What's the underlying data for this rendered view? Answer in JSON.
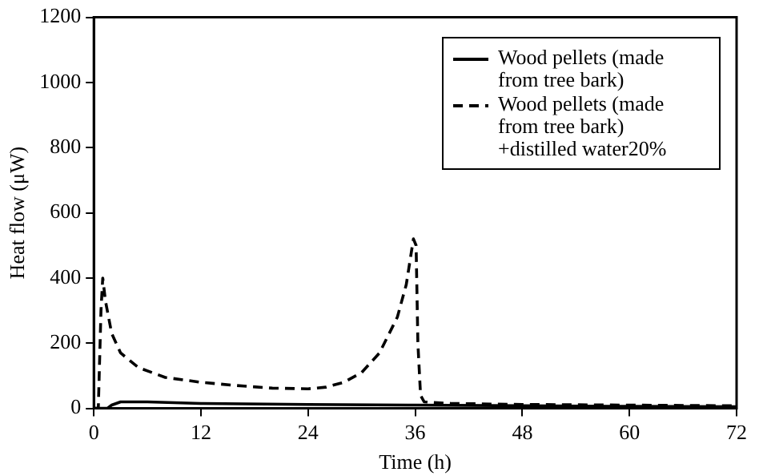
{
  "chart_data": {
    "type": "line",
    "xlabel": "Time (h)",
    "ylabel": "Heat flow (μW)",
    "xlim": [
      0,
      72
    ],
    "xticks": [
      0,
      12,
      24,
      36,
      48,
      60,
      72
    ],
    "ylim": [
      0,
      1200
    ],
    "yticks": [
      0,
      200,
      400,
      600,
      800,
      1000,
      1200
    ],
    "grid": false,
    "legend": "top right",
    "marker": "none",
    "series": [
      {
        "name": "Wood pellets (made from tree bark)",
        "color": "#000000",
        "line_style": "solid",
        "x": [
          0,
          1.5,
          2,
          3,
          6,
          12,
          24,
          36,
          48,
          60,
          72
        ],
        "values": [
          0,
          0,
          10,
          20,
          20,
          15,
          12,
          10,
          8,
          6,
          5
        ]
      },
      {
        "name": "Wood pellets (made from tree bark)\n+distilled water20%",
        "color": "#000000",
        "line_style": "dashed",
        "x": [
          0,
          0.5,
          0.8,
          1,
          1.3,
          2,
          3,
          5,
          8,
          12,
          16,
          20,
          24,
          26,
          28,
          30,
          32,
          34,
          35,
          35.8,
          36.1,
          36.3,
          36.6,
          37,
          40,
          48,
          60,
          72
        ],
        "values": [
          0,
          0,
          300,
          400,
          330,
          230,
          170,
          125,
          95,
          80,
          70,
          62,
          60,
          65,
          80,
          110,
          170,
          280,
          380,
          520,
          500,
          200,
          40,
          20,
          15,
          12,
          10,
          8
        ]
      }
    ]
  }
}
